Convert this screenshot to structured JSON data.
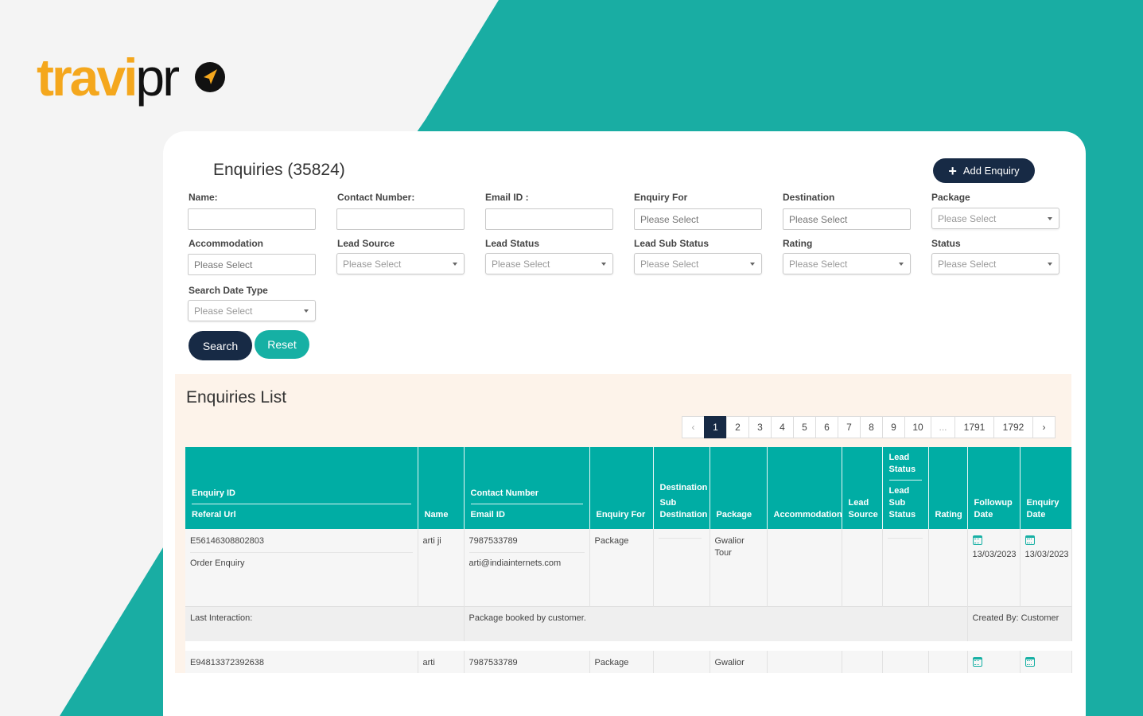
{
  "brand": {
    "logo_left": "travi",
    "logo_right": "pr"
  },
  "header": {
    "title": "Enquiries (35824)",
    "add_label": "Add Enquiry"
  },
  "filters": {
    "name": {
      "label": "Name:",
      "value": ""
    },
    "contact": {
      "label": "Contact Number:",
      "value": ""
    },
    "email": {
      "label": "Email ID :",
      "value": ""
    },
    "enquiry_for": {
      "label": "Enquiry For",
      "placeholder": "Please Select"
    },
    "destination": {
      "label": "Destination",
      "placeholder": "Please Select"
    },
    "package": {
      "label": "Package",
      "value": "Please Select"
    },
    "accommodation": {
      "label": "Accommodation",
      "placeholder": "Please Select"
    },
    "lead_source": {
      "label": "Lead Source",
      "value": "Please Select"
    },
    "lead_status": {
      "label": "Lead Status",
      "value": "Please Select"
    },
    "lead_sub_status": {
      "label": "Lead Sub Status",
      "value": "Please Select"
    },
    "rating": {
      "label": "Rating",
      "value": "Please Select"
    },
    "status": {
      "label": "Status",
      "value": "Please Select"
    },
    "search_date_type": {
      "label": "Search Date Type",
      "value": "Please Select"
    },
    "search_label": "Search",
    "reset_label": "Reset"
  },
  "list": {
    "title": "Enquiries List",
    "pagination": [
      "‹",
      "1",
      "2",
      "3",
      "4",
      "5",
      "6",
      "7",
      "8",
      "9",
      "10",
      "...",
      "1791",
      "1792",
      "›"
    ],
    "current_page": "1",
    "columns": {
      "enquiry_id": "Enquiry ID",
      "referal_url": "Referal Url",
      "name": "Name",
      "contact_number": "Contact Number",
      "email_id": "Email ID",
      "enquiry_for": "Enquiry For",
      "destination": "Destination",
      "sub_destination": "Sub Destination",
      "package": "Package",
      "accommodation": "Accommodation",
      "lead_source": "Lead Source",
      "lead_status": "Lead Status",
      "lead_sub_status": "Lead Sub Status",
      "rating": "Rating",
      "followup_date": "Followup Date",
      "enquiry_date": "Enquiry Date"
    },
    "rows": [
      {
        "enquiry_id": "E56146308802803",
        "referal": "Order Enquiry",
        "name": "arti ji",
        "contact": "7987533789",
        "email": "arti@indiainternets.com",
        "enquiry_for": "Package",
        "package": "Gwalior Tour",
        "followup_date": "13/03/2023",
        "enquiry_date": "13/03/2023",
        "last_interaction_label": "Last Interaction:",
        "interaction_note": "Package booked by customer.",
        "created_by": "Created By: Customer"
      },
      {
        "enquiry_id": "E94813372392638",
        "name": "arti",
        "contact": "7987533789",
        "enquiry_for": "Package",
        "package": "Gwalior"
      }
    ]
  },
  "colors": {
    "teal": "#16b0a4",
    "navy": "#172a45",
    "brand_orange": "#f4a71d"
  }
}
